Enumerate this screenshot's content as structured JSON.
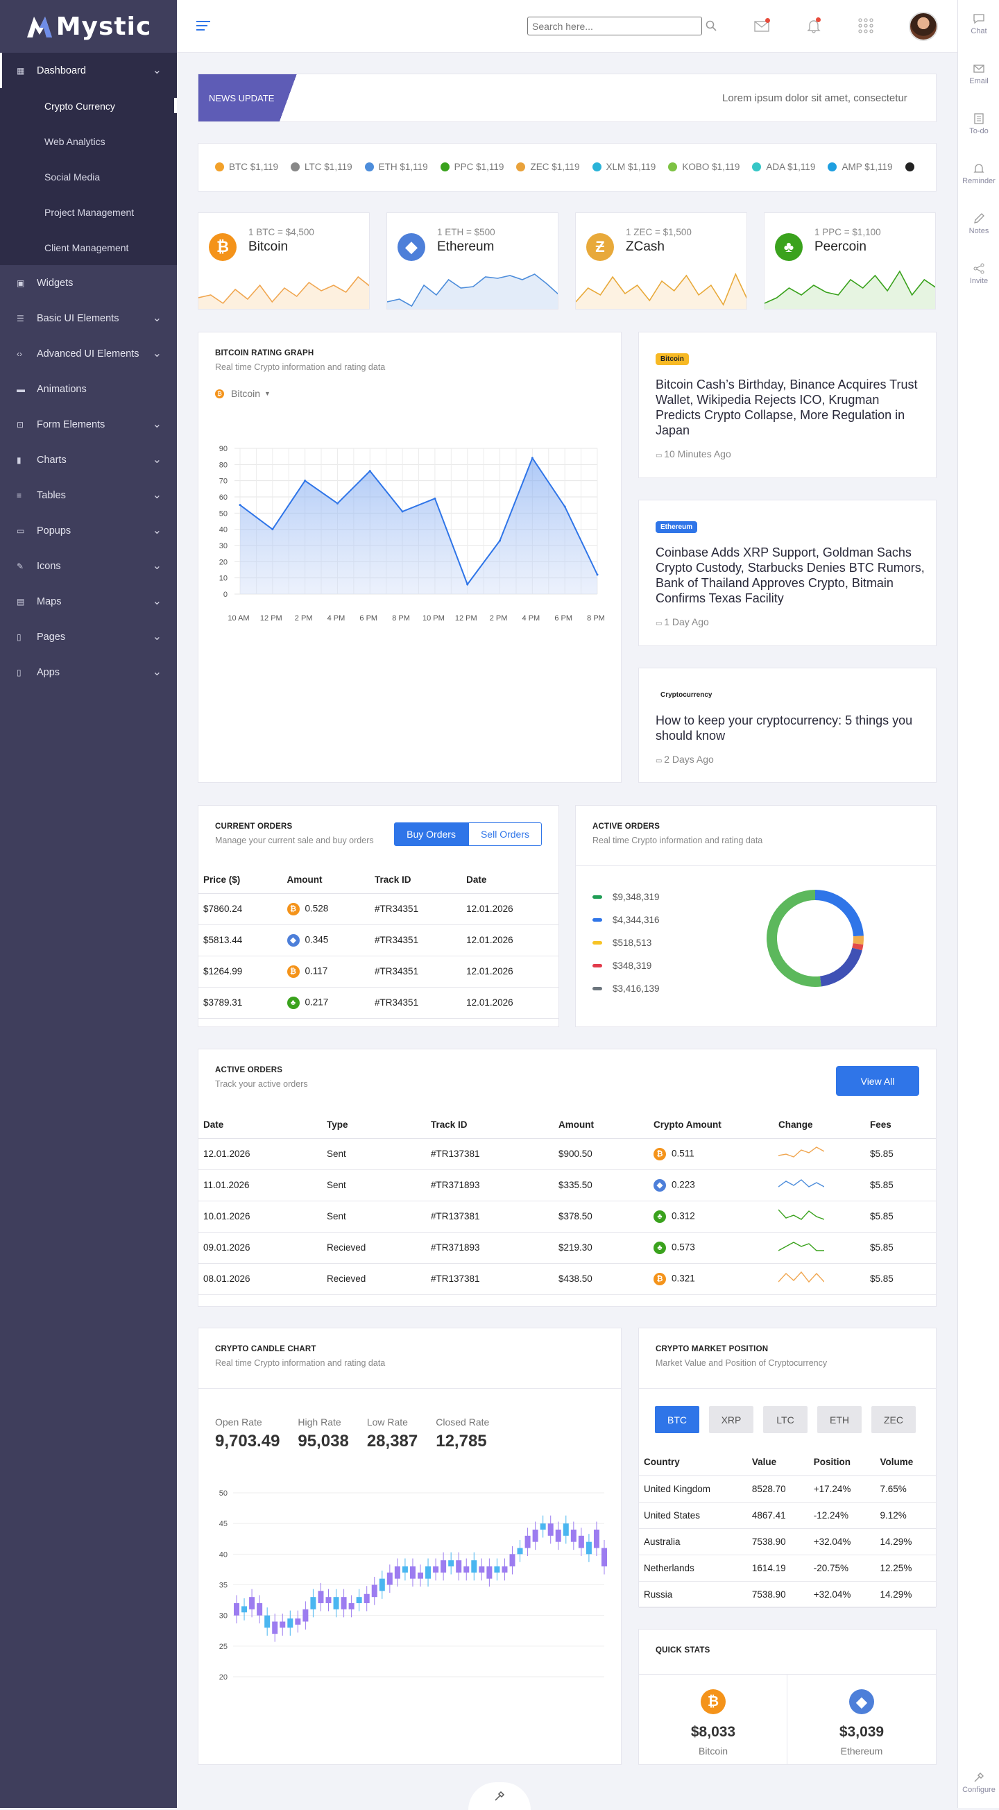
{
  "logo": {
    "text": "Mystic",
    "mark_letter": "M"
  },
  "sidebar": {
    "items": [
      {
        "label": "Dashboard",
        "icon": "dashboard-icon",
        "active": true,
        "has_children": true
      },
      {
        "label": "Widgets",
        "icon": "widgets-icon",
        "has_children": false
      },
      {
        "label": "Basic UI Elements",
        "icon": "sliders-icon",
        "has_children": true
      },
      {
        "label": "Advanced UI Elements",
        "icon": "code-icon",
        "has_children": true
      },
      {
        "label": "Animations",
        "icon": "paint-roller-icon",
        "has_children": false
      },
      {
        "label": "Form Elements",
        "icon": "form-icon",
        "has_children": true
      },
      {
        "label": "Charts",
        "icon": "bar-chart-icon",
        "has_children": true
      },
      {
        "label": "Tables",
        "icon": "table-icon",
        "has_children": true
      },
      {
        "label": "Popups",
        "icon": "popup-icon",
        "has_children": true
      },
      {
        "label": "Icons",
        "icon": "pen-icon",
        "has_children": true
      },
      {
        "label": "Maps",
        "icon": "map-icon",
        "has_children": true
      },
      {
        "label": "Pages",
        "icon": "page-icon",
        "has_children": true
      },
      {
        "label": "Apps",
        "icon": "mobile-icon",
        "has_children": true
      }
    ],
    "subitems": [
      "Crypto Currency",
      "Web Analytics",
      "Social Media",
      "Project Management",
      "Client Management"
    ],
    "active_sub": "Crypto Currency"
  },
  "search": {
    "placeholder": "Search here..."
  },
  "rightbar": [
    "Chat",
    "Email",
    "To-do",
    "Reminder",
    "Notes",
    "Invite",
    "Configure"
  ],
  "news": {
    "badge": "NEWS UPDATE",
    "text": "Lorem ipsum dolor sit amet, consectetur"
  },
  "ticker": [
    {
      "label": "BTC $1,119",
      "color": "#f2a12a"
    },
    {
      "label": "LTC $1,119",
      "color": "#888888"
    },
    {
      "label": "ETH $1,119",
      "color": "#4d8ddb"
    },
    {
      "label": "PPC $1,119",
      "color": "#3aa21d"
    },
    {
      "label": "ZEC $1,119",
      "color": "#e9a23b"
    },
    {
      "label": "XLM $1,119",
      "color": "#2ab3d8"
    },
    {
      "label": "KOBO $1,119",
      "color": "#7dc243"
    },
    {
      "label": "ADA $1,119",
      "color": "#36c6c6"
    },
    {
      "label": "AMP $1,119",
      "color": "#1e9fe0"
    },
    {
      "label": "",
      "color": "#222222"
    }
  ],
  "coins": [
    {
      "rate": "1 BTC = $4,500",
      "name": "Bitcoin",
      "symbol": "₿",
      "color": "#f4931a",
      "line": "#f0a650",
      "fill": "#fdf0df"
    },
    {
      "rate": "1 ETH = $500",
      "name": "Ethereum",
      "symbol": "◆",
      "color": "#4d7fd9",
      "line": "#4d8ddb",
      "fill": "#e3ecf9"
    },
    {
      "rate": "1 ZEC = $1,500",
      "name": "ZCash",
      "symbol": "Ƶ",
      "color": "#e8a93a",
      "line": "#e8a93a",
      "fill": "#fdf2e2"
    },
    {
      "rate": "1 PPC = $1,100",
      "name": "Peercoin",
      "symbol": "♣",
      "color": "#3aa21d",
      "line": "#3aa21d",
      "fill": "#e6f4e1"
    }
  ],
  "graph": {
    "title": "BITCOIN RATING GRAPH",
    "subtitle": "Real time Crypto information and rating data",
    "dropdown": "Bitcoin"
  },
  "chart_data": [
    {
      "type": "area",
      "title": "BITCOIN RATING GRAPH",
      "x": [
        "10 AM",
        "12 PM",
        "2 PM",
        "4 PM",
        "6 PM",
        "8 PM",
        "10 PM",
        "12 PM",
        "2 PM",
        "4 PM",
        "6 PM",
        "8 PM"
      ],
      "values": [
        55,
        40,
        70,
        56,
        76,
        51,
        59,
        6,
        33,
        84,
        54,
        12
      ],
      "ylim": [
        0,
        90
      ],
      "yticks": [
        0,
        10,
        20,
        30,
        40,
        50,
        60,
        70,
        80,
        90
      ],
      "grid": true,
      "color": "#2f75e8"
    },
    {
      "type": "candlestick",
      "title": "CRYPTO CANDLE CHART",
      "yticks": [
        20,
        25,
        30,
        35,
        40,
        45,
        50
      ],
      "ylim": [
        20,
        50
      ],
      "candles": [
        [
          30,
          32
        ],
        [
          30.5,
          31.5
        ],
        [
          31,
          33
        ],
        [
          30,
          32
        ],
        [
          28,
          30
        ],
        [
          27,
          29
        ],
        [
          28,
          29
        ],
        [
          28,
          29.5
        ],
        [
          28.5,
          29.5
        ],
        [
          29,
          31
        ],
        [
          31,
          33
        ],
        [
          32,
          34
        ],
        [
          32,
          33
        ],
        [
          31,
          33
        ],
        [
          31,
          33
        ],
        [
          31,
          32
        ],
        [
          32,
          33
        ],
        [
          32,
          33.5
        ],
        [
          33,
          35
        ],
        [
          34,
          36
        ],
        [
          35,
          37
        ],
        [
          36,
          38
        ],
        [
          37,
          38
        ],
        [
          36,
          38
        ],
        [
          36,
          37
        ],
        [
          36,
          38
        ],
        [
          37,
          38
        ],
        [
          37,
          39
        ],
        [
          38,
          39
        ],
        [
          37,
          39
        ],
        [
          37,
          38
        ],
        [
          37,
          39
        ],
        [
          37,
          38
        ],
        [
          36,
          38
        ],
        [
          37,
          38
        ],
        [
          37,
          38
        ],
        [
          38,
          40
        ],
        [
          40,
          41
        ],
        [
          41,
          43
        ],
        [
          42,
          44
        ],
        [
          44,
          45
        ],
        [
          43,
          45
        ],
        [
          42,
          44
        ],
        [
          43,
          45
        ],
        [
          42,
          44
        ],
        [
          41,
          43
        ],
        [
          40,
          42
        ],
        [
          41,
          44
        ],
        [
          38,
          41
        ]
      ]
    },
    {
      "type": "pie",
      "title": "ACTIVE ORDERS",
      "values": [
        9348319,
        4344316,
        518513,
        348319,
        3416139
      ],
      "colors": [
        "#5cb85c",
        "#2f75e8",
        "#f0ad4e",
        "#e24a4a",
        "#3f51b5"
      ]
    }
  ],
  "news_cards": [
    {
      "tag": "Bitcoin",
      "tag_bg": "#f7b924",
      "tag_color": "#222",
      "title": "Bitcoin Cash’s Birthday, Binance Acquires Trust Wallet, Wikipedia Rejects ICO, Krugman Predicts Crypto Collapse, More Regulation in Japan",
      "time": "10 Minutes Ago"
    },
    {
      "tag": "Ethereum",
      "tag_bg": "#2f75e8",
      "tag_color": "#fff",
      "title": "Coinbase Adds XRP Support, Goldman Sachs Crypto Custody, Starbucks Denies BTC Rumors, Bank of Thailand Approves Crypto, Bitmain Confirms Texas Facility",
      "time": "1 Day Ago"
    },
    {
      "tag": "Cryptocurrency",
      "tag_bg": "#ffffff",
      "tag_color": "#222",
      "title": "How to keep your cryptocurrency: 5 things you should know",
      "time": "2 Days Ago"
    }
  ],
  "current_orders": {
    "title": "CURRENT ORDERS",
    "subtitle": "Manage your current sale and buy orders",
    "buy": "Buy Orders",
    "sell": "Sell Orders",
    "headers": [
      "Price ($)",
      "Amount",
      "Track ID",
      "Date"
    ],
    "rows": [
      {
        "price": "$7860.24",
        "amount": "0.528",
        "coin": "#f4931a",
        "sym": "₿",
        "track": "#TR34351",
        "date": "12.01.2026"
      },
      {
        "price": "$5813.44",
        "amount": "0.345",
        "coin": "#4d7fd9",
        "sym": "◆",
        "track": "#TR34351",
        "date": "12.01.2026"
      },
      {
        "price": "$1264.99",
        "amount": "0.117",
        "coin": "#f4931a",
        "sym": "₿",
        "track": "#TR34351",
        "date": "12.01.2026"
      },
      {
        "price": "$3789.31",
        "amount": "0.217",
        "coin": "#3aa21d",
        "sym": "♣",
        "track": "#TR34351",
        "date": "12.01.2026"
      }
    ]
  },
  "active_orders_pie": {
    "title": "ACTIVE ORDERS",
    "subtitle": "Real time Crypto information and rating data",
    "legend": [
      {
        "label": "$9,348,319",
        "color": "#1f9d55"
      },
      {
        "label": "$4,344,316",
        "color": "#2f75e8"
      },
      {
        "label": "$518,513",
        "color": "#f7c325"
      },
      {
        "label": "$348,319",
        "color": "#e23b4b"
      },
      {
        "label": "$3,416,139",
        "color": "#6c757d"
      }
    ]
  },
  "active_orders": {
    "title": "ACTIVE ORDERS",
    "subtitle": "Track your active orders",
    "view_all": "View All",
    "headers": [
      "Date",
      "Type",
      "Track ID",
      "Amount",
      "Crypto Amount",
      "Change",
      "Fees"
    ],
    "rows": [
      {
        "date": "12.01.2026",
        "type": "Sent",
        "track": "#TR137381",
        "amount": "$900.50",
        "crypto": "0.511",
        "coin": "#f4931a",
        "sym": "₿",
        "spark": "#f0a650",
        "fees": "$5.85"
      },
      {
        "date": "11.01.2026",
        "type": "Sent",
        "track": "#TR371893",
        "amount": "$335.50",
        "crypto": "0.223",
        "coin": "#4d7fd9",
        "sym": "◆",
        "spark": "#4d8ddb",
        "fees": "$5.85"
      },
      {
        "date": "10.01.2026",
        "type": "Sent",
        "track": "#TR137381",
        "amount": "$378.50",
        "crypto": "0.312",
        "coin": "#3aa21d",
        "sym": "♣",
        "spark": "#3aa21d",
        "fees": "$5.85"
      },
      {
        "date": "09.01.2026",
        "type": "Recieved",
        "track": "#TR371893",
        "amount": "$219.30",
        "crypto": "0.573",
        "coin": "#3aa21d",
        "sym": "♣",
        "spark": "#3aa21d",
        "fees": "$5.85"
      },
      {
        "date": "08.01.2026",
        "type": "Recieved",
        "track": "#TR137381",
        "amount": "$438.50",
        "crypto": "0.321",
        "coin": "#f4931a",
        "sym": "₿",
        "spark": "#f0a650",
        "fees": "$5.85"
      }
    ]
  },
  "candle": {
    "title": "CRYPTO CANDLE CHART",
    "subtitle": "Real time Crypto information and rating data",
    "rates": [
      {
        "label": "Open Rate",
        "value": "9,703.49"
      },
      {
        "label": "High Rate",
        "value": "95,038"
      },
      {
        "label": "Low Rate",
        "value": "28,387"
      },
      {
        "label": "Closed Rate",
        "value": "12,785"
      }
    ]
  },
  "market": {
    "title": "CRYPTO MARKET POSITION",
    "subtitle": "Market Value and Position of Cryptocurrency",
    "tabs": [
      "BTC",
      "XRP",
      "LTC",
      "ETH",
      "ZEC"
    ],
    "headers": [
      "Country",
      "Value",
      "Position",
      "Volume"
    ],
    "rows": [
      [
        "United Kingdom",
        "8528.70",
        "+17.24%",
        "7.65%"
      ],
      [
        "United States",
        "4867.41",
        "-12.24%",
        "9.12%"
      ],
      [
        "Australia",
        "7538.90",
        "+32.04%",
        "14.29%"
      ],
      [
        "Netherlands",
        "1614.19",
        "-20.75%",
        "12.25%"
      ],
      [
        "Russia",
        "7538.90",
        "+32.04%",
        "14.29%"
      ]
    ]
  },
  "quick": {
    "title": "QUICK STATS",
    "items": [
      {
        "value": "$8,033",
        "label": "Bitcoin",
        "color": "#f4931a",
        "sym": "₿"
      },
      {
        "value": "$3,039",
        "label": "Ethereum",
        "color": "#4d7fd9",
        "sym": "◆"
      }
    ]
  }
}
